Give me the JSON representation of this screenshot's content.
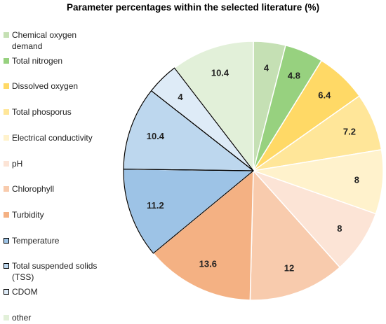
{
  "chart_data": {
    "type": "pie",
    "title": "Parameter percentages within the selected literature (%)",
    "legend_position": "left",
    "slices": [
      {
        "label": "Chemical oxygen demand",
        "value": 4,
        "value_label": "4",
        "color": "#c5e0b4",
        "outlined": false
      },
      {
        "label": "Total nitrogen",
        "value": 4.8,
        "value_label": "4.8",
        "color": "#97d17f",
        "outlined": false
      },
      {
        "label": "Dissolved oxygen",
        "value": 6.4,
        "value_label": "6.4",
        "color": "#ffd966",
        "outlined": false
      },
      {
        "label": "Total phosporus",
        "value": 7.2,
        "value_label": "7.2",
        "color": "#ffe699",
        "outlined": false
      },
      {
        "label": "Electrical conductivity",
        "value": 8,
        "value_label": "8",
        "color": "#fff2cc",
        "outlined": false
      },
      {
        "label": "pH",
        "value": 8,
        "value_label": "8",
        "color": "#fce4d6",
        "outlined": false
      },
      {
        "label": "Chlorophyll",
        "value": 12,
        "value_label": "12",
        "color": "#f8cbad",
        "outlined": false
      },
      {
        "label": "Turbidity",
        "value": 13.6,
        "value_label": "13.6",
        "color": "#f4b183",
        "outlined": false
      },
      {
        "label": "Temperature",
        "value": 11.2,
        "value_label": "11.2",
        "color": "#9dc3e6",
        "outlined": true
      },
      {
        "label": "Total suspended solids (TSS)",
        "value": 10.4,
        "value_label": "10.4",
        "color": "#bdd7ee",
        "outlined": true
      },
      {
        "label": "CDOM",
        "value": 4,
        "value_label": "4",
        "color": "#deebf7",
        "outlined": true
      },
      {
        "label": "other",
        "value": 10.4,
        "value_label": "10.4",
        "color": "#e2f0d9",
        "outlined": false
      }
    ]
  }
}
